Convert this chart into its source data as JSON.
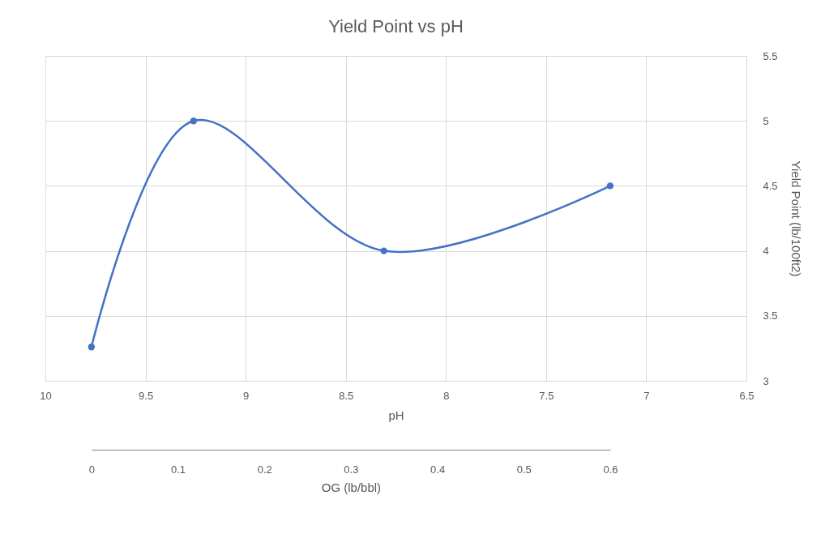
{
  "chart_data": {
    "type": "line",
    "title": "Yield Point vs pH",
    "xlabel": "pH",
    "ylabel": "Yield Point (lb/100ft2)",
    "x2label": "OG (lb/bbl)",
    "x": [
      9.77,
      9.26,
      8.31,
      7.18
    ],
    "series": [
      {
        "color": "#4472c4",
        "values": [
          3.26,
          5.0,
          4.0,
          4.5
        ]
      }
    ],
    "xlim": [
      10,
      6.5
    ],
    "xticks": [
      10,
      9.5,
      9,
      8.5,
      8,
      7.5,
      7,
      6.5
    ],
    "ylim": [
      3,
      5.5
    ],
    "yticks": [
      3,
      3.5,
      4,
      4.5,
      5,
      5.5
    ],
    "x2lim": [
      0,
      0.6
    ],
    "x2ticks": [
      0,
      0.1,
      0.2,
      0.3,
      0.4,
      0.5,
      0.6
    ],
    "grid": true,
    "marker": "circle",
    "line_style": "solid"
  }
}
